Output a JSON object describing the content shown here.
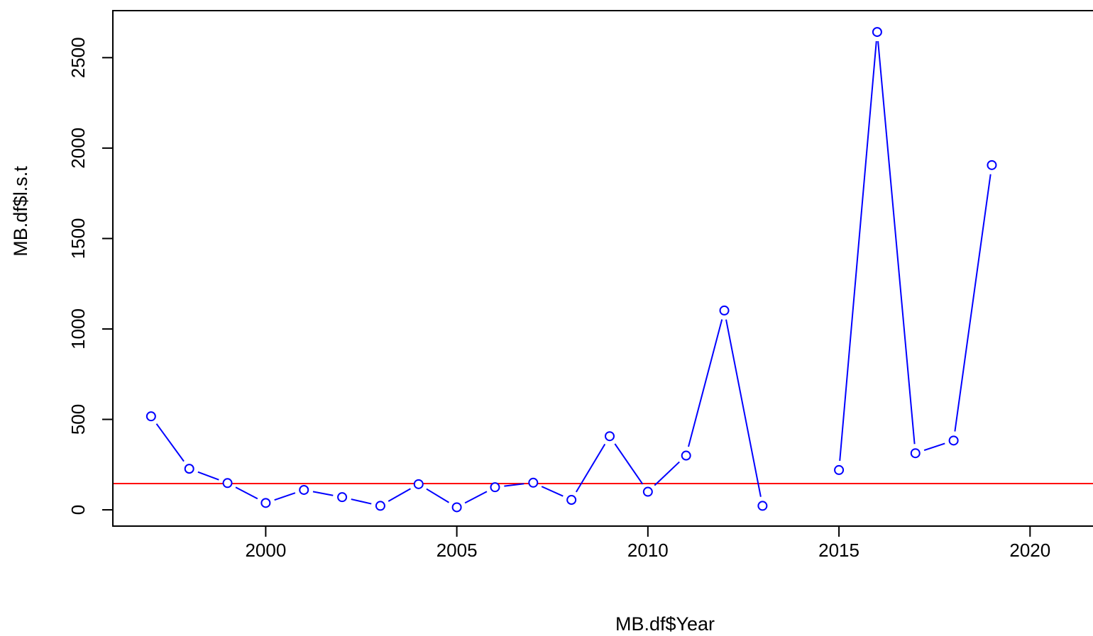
{
  "chart_data": {
    "type": "line",
    "xlabel": "MB.df$Year",
    "ylabel": "MB.df$l.s.t",
    "xlim": [
      1996,
      2022
    ],
    "ylim": [
      -90,
      2760
    ],
    "xticks": [
      2000,
      2005,
      2010,
      2015,
      2020
    ],
    "yticks": [
      0,
      500,
      1000,
      1500,
      2000,
      2500
    ],
    "grid": false,
    "legend": "none",
    "series": [
      {
        "color": "#0000ff",
        "points": [
          {
            "x": 1997,
            "y": 517
          },
          {
            "x": 1998,
            "y": 227
          },
          {
            "x": 1999,
            "y": 148
          },
          {
            "x": 2000,
            "y": 38
          },
          {
            "x": 2001,
            "y": 110
          },
          {
            "x": 2002,
            "y": 70
          },
          {
            "x": 2003,
            "y": 22
          },
          {
            "x": 2004,
            "y": 142
          },
          {
            "x": 2005,
            "y": 14
          },
          {
            "x": 2006,
            "y": 125
          },
          {
            "x": 2007,
            "y": 150
          },
          {
            "x": 2008,
            "y": 55
          },
          {
            "x": 2009,
            "y": 407
          },
          {
            "x": 2010,
            "y": 100
          },
          {
            "x": 2011,
            "y": 300
          },
          {
            "x": 2012,
            "y": 1102
          },
          {
            "x": 2013,
            "y": 22
          },
          {
            "x": 2014,
            "y": null
          },
          {
            "x": 2015,
            "y": 220
          },
          {
            "x": 2016,
            "y": 2642
          },
          {
            "x": 2017,
            "y": 313
          },
          {
            "x": 2018,
            "y": 383
          },
          {
            "x": 2019,
            "y": 1906
          }
        ]
      }
    ],
    "reference_line": {
      "y": 145,
      "color": "#ff0000"
    }
  }
}
